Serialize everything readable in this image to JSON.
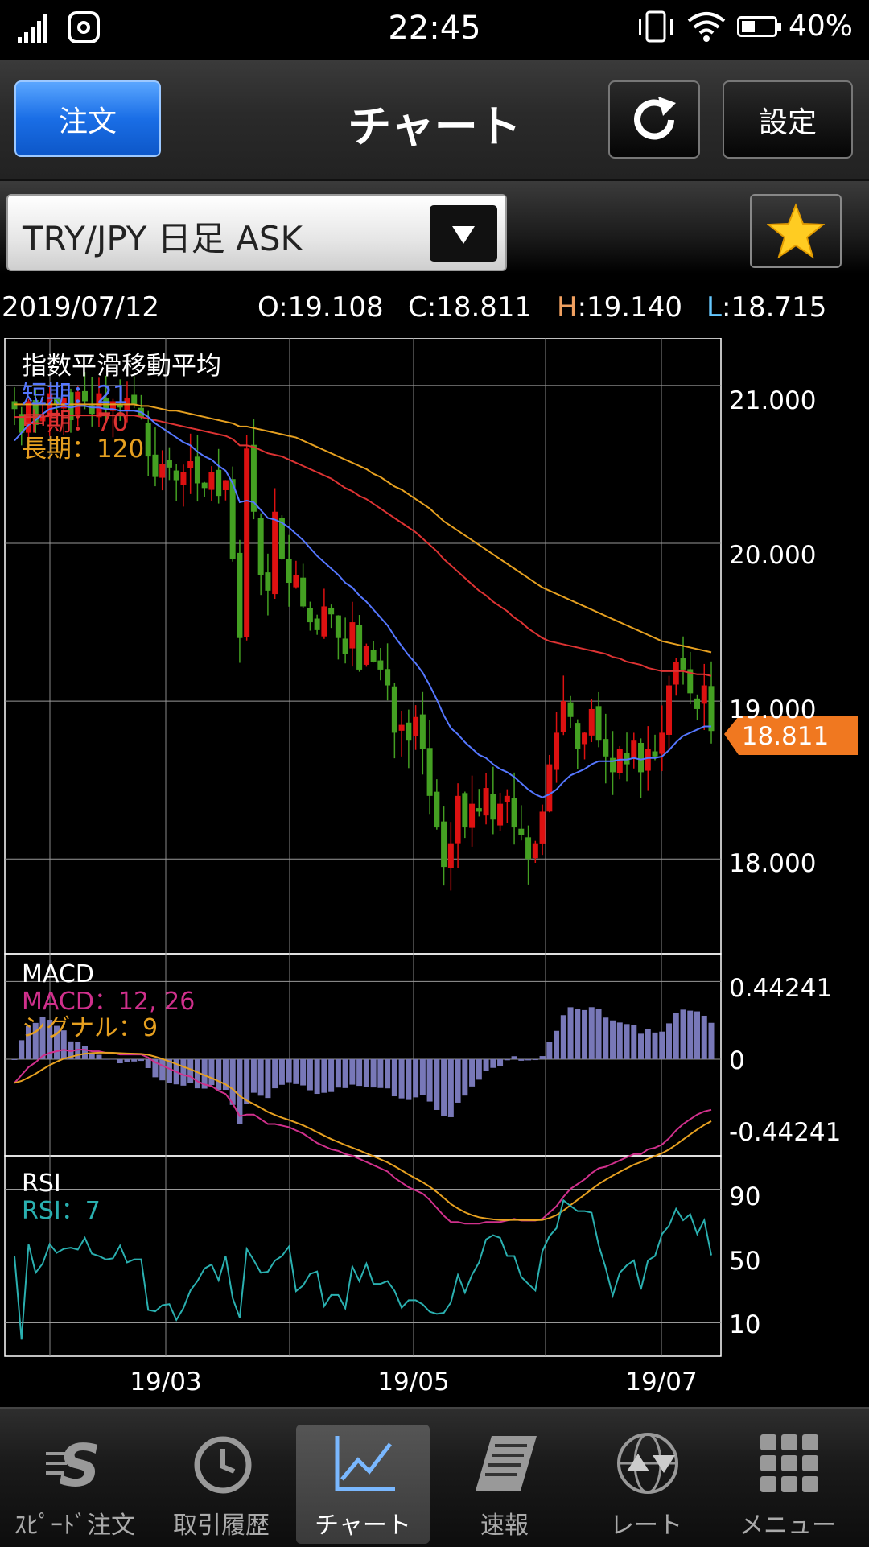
{
  "status_bar": {
    "time": "22:45",
    "battery": "40%"
  },
  "header": {
    "order_button": "注文",
    "title": "チャート",
    "settings_button": "設定"
  },
  "selector": {
    "value": "TRY/JPY 日足 ASK"
  },
  "ohlc": {
    "date": "2019/07/12",
    "open_label": "O:",
    "open": "19.108",
    "close_label": "C:",
    "close": "18.811",
    "high_label": "H",
    "high": ":19.140",
    "low_label": "L",
    "low": ":18.715"
  },
  "colors": {
    "high": "#f0a060",
    "low": "#66c8ff",
    "short": "#5577ff",
    "mid": "#dd3333",
    "long": "#e6a020",
    "macd": "#d0308c",
    "signal": "#e6a020",
    "rsi": "#2ab0b0",
    "price_tag": "#f07820"
  },
  "chart_data": {
    "type": "candlestick",
    "x_ticks": [
      "19/03",
      "19/05",
      "19/07"
    ],
    "current_price": "18.811",
    "main": {
      "title": "指数平滑移動平均",
      "legend": [
        "短期：21",
        "中期：70",
        "長期：120"
      ],
      "y_ticks": [
        "21.000",
        "20.000",
        "19.000",
        "18.000"
      ],
      "ylim": [
        17.4,
        21.3
      ],
      "close_series": [
        20.85,
        20.7,
        20.9,
        20.75,
        20.8,
        20.95,
        20.88,
        20.92,
        20.78,
        20.96,
        20.9,
        20.82,
        20.95,
        20.85,
        20.9,
        20.86,
        20.92,
        20.88,
        20.8,
        20.55,
        20.42,
        20.5,
        20.48,
        20.4,
        20.45,
        20.52,
        20.38,
        20.35,
        20.45,
        20.3,
        20.4,
        19.9,
        19.4,
        20.6,
        20.2,
        19.8,
        19.7,
        20.2,
        19.9,
        19.75,
        19.8,
        19.6,
        19.5,
        19.45,
        19.6,
        19.55,
        19.4,
        19.3,
        19.5,
        19.2,
        19.35,
        19.25,
        19.2,
        19.1,
        18.8,
        18.85,
        18.75,
        18.9,
        18.7,
        18.4,
        18.2,
        17.95,
        18.1,
        18.4,
        18.2,
        18.35,
        18.3,
        18.45,
        18.25,
        18.35,
        18.4,
        18.2,
        18.15,
        18.0,
        18.1,
        18.3,
        18.6,
        18.8,
        19.0,
        18.9,
        18.7,
        18.8,
        18.95,
        18.75,
        18.65,
        18.55,
        18.7,
        18.6,
        18.75,
        18.55,
        18.7,
        18.65,
        18.8,
        19.1,
        19.25,
        19.2,
        19.05,
        18.95,
        19.1,
        18.811
      ],
      "ema_short": [
        20.65,
        20.7,
        20.75,
        20.78,
        20.82,
        20.85,
        20.86,
        20.87,
        20.86,
        20.87,
        20.87,
        20.86,
        20.86,
        20.85,
        20.85,
        20.84,
        20.84,
        20.84,
        20.83,
        20.8,
        20.76,
        20.73,
        20.7,
        20.67,
        20.64,
        20.62,
        20.58,
        20.55,
        20.53,
        20.49,
        20.46,
        20.38,
        20.26,
        20.27,
        20.26,
        20.21,
        20.16,
        20.15,
        20.13,
        20.1,
        20.06,
        20.02,
        19.97,
        19.92,
        19.88,
        19.84,
        19.8,
        19.75,
        19.72,
        19.67,
        19.63,
        19.58,
        19.53,
        19.48,
        19.41,
        19.35,
        19.29,
        19.24,
        19.18,
        19.1,
        19.01,
        18.91,
        18.83,
        18.79,
        18.74,
        18.7,
        18.66,
        18.64,
        18.6,
        18.57,
        18.55,
        18.52,
        18.48,
        18.44,
        18.41,
        18.39,
        18.41,
        18.44,
        18.49,
        18.53,
        18.55,
        18.57,
        18.6,
        18.62,
        18.62,
        18.62,
        18.63,
        18.63,
        18.64,
        18.63,
        18.64,
        18.64,
        18.65,
        18.69,
        18.74,
        18.78,
        18.8,
        18.82,
        18.84,
        18.84
      ],
      "ema_mid": [
        20.8,
        20.8,
        20.8,
        20.8,
        20.8,
        20.81,
        20.81,
        20.81,
        20.81,
        20.81,
        20.81,
        20.81,
        20.81,
        20.81,
        20.81,
        20.81,
        20.81,
        20.81,
        20.8,
        20.79,
        20.78,
        20.77,
        20.76,
        20.75,
        20.74,
        20.73,
        20.72,
        20.71,
        20.7,
        20.69,
        20.68,
        20.66,
        20.62,
        20.62,
        20.61,
        20.59,
        20.57,
        20.56,
        20.55,
        20.53,
        20.51,
        20.49,
        20.47,
        20.45,
        20.43,
        20.41,
        20.38,
        20.35,
        20.33,
        20.3,
        20.28,
        20.25,
        20.22,
        20.19,
        20.16,
        20.13,
        20.1,
        20.07,
        20.03,
        19.99,
        19.95,
        19.9,
        19.86,
        19.82,
        19.78,
        19.74,
        19.7,
        19.67,
        19.63,
        19.6,
        19.57,
        19.53,
        19.5,
        19.46,
        19.43,
        19.4,
        19.38,
        19.37,
        19.36,
        19.35,
        19.34,
        19.33,
        19.32,
        19.31,
        19.3,
        19.28,
        19.27,
        19.25,
        19.24,
        19.23,
        19.21,
        19.2,
        19.19,
        19.19,
        19.19,
        19.19,
        19.18,
        19.17,
        19.17,
        19.16
      ],
      "ema_long": [
        20.88,
        20.88,
        20.88,
        20.88,
        20.88,
        20.88,
        20.88,
        20.88,
        20.88,
        20.88,
        20.88,
        20.88,
        20.88,
        20.88,
        20.88,
        20.88,
        20.88,
        20.88,
        20.87,
        20.87,
        20.86,
        20.85,
        20.84,
        20.84,
        20.83,
        20.82,
        20.81,
        20.8,
        20.79,
        20.78,
        20.77,
        20.76,
        20.74,
        20.74,
        20.73,
        20.72,
        20.71,
        20.7,
        20.69,
        20.68,
        20.67,
        20.65,
        20.63,
        20.61,
        20.59,
        20.57,
        20.55,
        20.53,
        20.51,
        20.49,
        20.47,
        20.44,
        20.42,
        20.39,
        20.36,
        20.34,
        20.31,
        20.28,
        20.25,
        20.22,
        20.18,
        20.14,
        20.11,
        20.08,
        20.05,
        20.02,
        19.99,
        19.96,
        19.93,
        19.9,
        19.87,
        19.84,
        19.81,
        19.78,
        19.75,
        19.72,
        19.7,
        19.68,
        19.66,
        19.64,
        19.62,
        19.6,
        19.58,
        19.56,
        19.54,
        19.52,
        19.5,
        19.48,
        19.46,
        19.44,
        19.42,
        19.4,
        19.38,
        19.37,
        19.36,
        19.35,
        19.34,
        19.33,
        19.32,
        19.31
      ]
    },
    "macd": {
      "title": "MACD",
      "legend": [
        "MACD：12, 26",
        "シグナル：9"
      ],
      "y_ticks": [
        "0.44241",
        "0",
        "-0.44241"
      ],
      "ylim": [
        -0.55,
        0.6
      ]
    },
    "rsi": {
      "title": "RSI",
      "legend": [
        "RSI：7"
      ],
      "y_ticks": [
        "90",
        "50",
        "10"
      ],
      "ylim": [
        -10,
        110
      ]
    }
  },
  "tabs": [
    {
      "label": "ｽﾋﾟｰﾄﾞ注文",
      "icon": "speed-order-icon"
    },
    {
      "label": "取引履歴",
      "icon": "history-icon"
    },
    {
      "label": "チャート",
      "icon": "chart-icon",
      "active": true
    },
    {
      "label": "速報",
      "icon": "news-icon"
    },
    {
      "label": "レート",
      "icon": "rate-icon"
    },
    {
      "label": "メニュー",
      "icon": "menu-grid-icon"
    }
  ]
}
